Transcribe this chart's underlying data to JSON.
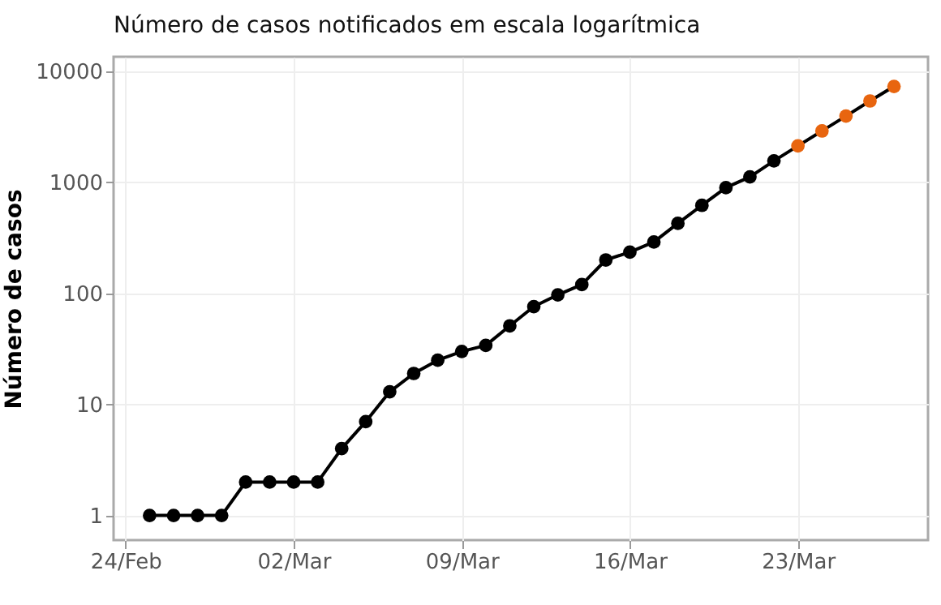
{
  "chart_data": {
    "type": "line",
    "title": "Número de casos notificados em escala logarítmica",
    "ylabel": "Número de casos",
    "x": [
      "--02-25",
      "--02-26",
      "--02-27",
      "--02-28",
      "--02-29",
      "--03-01",
      "--03-02",
      "--03-03",
      "--03-04",
      "--03-05",
      "--03-06",
      "--03-07",
      "--03-08",
      "--03-09",
      "--03-10",
      "--03-11",
      "--03-12",
      "--03-13",
      "--03-14",
      "--03-15",
      "--03-16",
      "--03-17",
      "--03-18",
      "--03-19",
      "--03-20",
      "--03-21",
      "--03-22",
      "--03-23",
      "--03-24",
      "--03-25",
      "--03-26",
      "--03-27"
    ],
    "series": [
      {
        "color": "#000000",
        "colors": [
          "#000000",
          "#000000",
          "#000000",
          "#000000",
          "#000000",
          "#000000",
          "#000000",
          "#000000",
          "#000000",
          "#000000",
          "#000000",
          "#000000",
          "#000000",
          "#000000",
          "#000000",
          "#000000",
          "#000000",
          "#000000",
          "#000000",
          "#000000",
          "#000000",
          "#000000",
          "#000000",
          "#000000",
          "#000000",
          "#000000",
          "#000000",
          "#e8650f",
          "#e8650f",
          "#e8650f",
          "#e8650f",
          "#e8650f"
        ],
        "values": [
          1,
          1,
          1,
          1,
          2,
          2,
          2,
          2,
          4,
          7,
          13,
          19,
          25,
          30,
          34,
          51,
          76,
          97,
          120,
          200,
          235,
          290,
          427,
          620,
          895,
          1120,
          1560,
          2130,
          2900,
          3950,
          5400,
          7300
        ]
      }
    ],
    "xlim": [
      "--02-23T12:00",
      "--03-28T10:00"
    ],
    "xticks": [
      {
        "value": "--02-24",
        "label": "24/Feb"
      },
      {
        "value": "--03-02",
        "label": "02/Mar"
      },
      {
        "value": "--03-09",
        "label": "09/Mar"
      },
      {
        "value": "--03-16",
        "label": "16/Mar"
      },
      {
        "value": "--03-23",
        "label": "23/Mar"
      }
    ],
    "ylim": [
      0.6,
      13500
    ],
    "yticks": [
      1,
      10,
      100,
      1000,
      10000
    ],
    "log": true,
    "grid": true,
    "marker": "circle",
    "line_style": "solid"
  }
}
